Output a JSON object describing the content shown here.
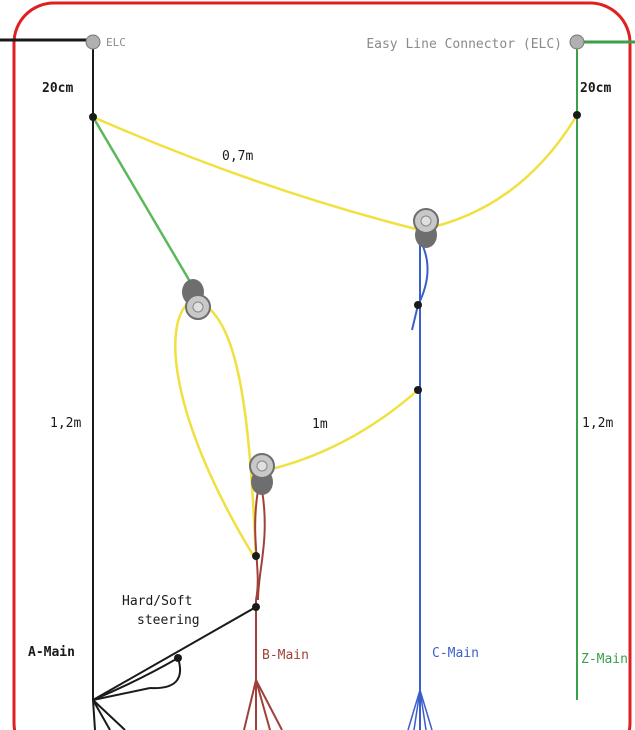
{
  "colors": {
    "frame": "#e02020",
    "a_line": "#1a1a1a",
    "b_line": "#a0403a",
    "c_line": "#3b5fc9",
    "z_line": "#3aa04a",
    "bridle": "#f0e040",
    "steer": "#5cb85c",
    "pulley_fill": "#c8c8c8",
    "pulley_dark": "#6e6e6e"
  },
  "labels": {
    "elc_short": "ELC",
    "elc_long": "Easy Line Connector (ELC)",
    "top_left_length": "20cm",
    "top_right_length": "20cm",
    "span_top": "0,7m",
    "span_middle": "1m",
    "left_length": "1,2m",
    "right_length": "1,2m",
    "steering_line1": "Hard/Soft",
    "steering_line2": "steering",
    "a_main": "A-Main",
    "b_main": "B-Main",
    "c_main": "C-Main",
    "z_main": "Z-Main"
  },
  "icons": {
    "pulley": "pulley-icon",
    "connector": "connector-icon"
  }
}
